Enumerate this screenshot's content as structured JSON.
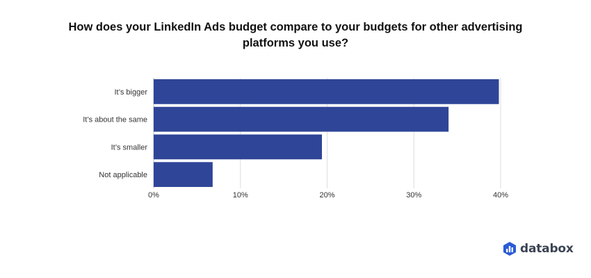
{
  "chart_data": {
    "type": "bar",
    "orientation": "horizontal",
    "title": "How does your LinkedIn Ads budget compare to your budgets for other advertising platforms you use?",
    "categories": [
      "It’s bigger",
      "It’s about the same",
      "It’s smaller",
      "Not applicable"
    ],
    "values": [
      39.8,
      34.0,
      19.4,
      6.8
    ],
    "xlim": [
      0,
      40
    ],
    "xticks": [
      0,
      10,
      20,
      30,
      40
    ],
    "xtick_labels": [
      "0%",
      "10%",
      "20%",
      "30%",
      "40%"
    ],
    "xlabel": "",
    "ylabel": "",
    "grid": true,
    "bar_color": "#2f4597"
  },
  "branding": {
    "logo_text": "databox",
    "icon": "databox-logo-icon"
  }
}
